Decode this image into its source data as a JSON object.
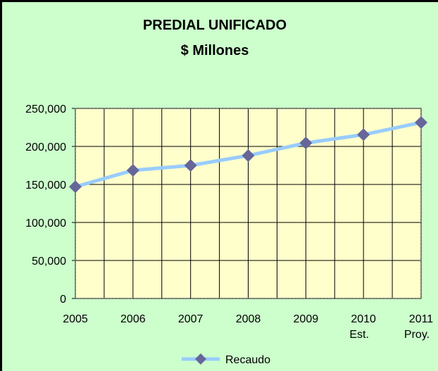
{
  "chart_data": {
    "type": "line",
    "title": "PREDIAL UNIFICADO",
    "subtitle": "$ Millones",
    "categories": [
      [
        "2005"
      ],
      [
        "2006"
      ],
      [
        "2007"
      ],
      [
        "2008"
      ],
      [
        "2009"
      ],
      [
        "2010",
        "Est."
      ],
      [
        "2011",
        "Proy."
      ]
    ],
    "series": [
      {
        "name": "Recaudo",
        "color": "#99ccff",
        "marker_color": "#666699",
        "values": [
          147000,
          168500,
          175000,
          188000,
          204500,
          215500,
          231500
        ]
      }
    ],
    "ylim": [
      0,
      250000
    ],
    "yticks": [
      0,
      {
        "value": 50000,
        "label": "50,000"
      },
      {
        "value": 100000,
        "label": "100,000"
      },
      {
        "value": 150000,
        "label": "150,000"
      },
      {
        "value": 200000,
        "label": "200,000"
      },
      {
        "value": 250000,
        "label": "250,000"
      }
    ],
    "grid": true,
    "legend": "bottom"
  }
}
